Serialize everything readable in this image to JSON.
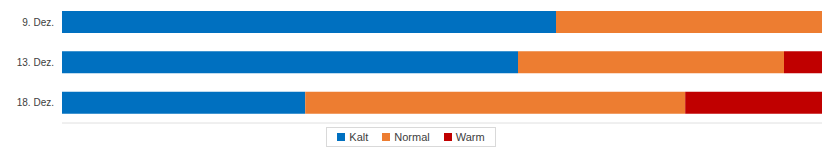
{
  "chart_data": {
    "type": "bar",
    "orientation": "horizontal",
    "stacked": true,
    "categories": [
      "9. Dez.",
      "13. Dez.",
      "18. Dez."
    ],
    "series": [
      {
        "name": "Kalt",
        "color": "#0070c0",
        "values": [
          65,
          60,
          32
        ]
      },
      {
        "name": "Normal",
        "color": "#ed7d31",
        "values": [
          35,
          35,
          50
        ]
      },
      {
        "name": "Warm",
        "color": "#c00000",
        "values": [
          0,
          5,
          18
        ]
      }
    ],
    "xlim": [
      0,
      100
    ],
    "tick_labels": "y",
    "legend": "bottom",
    "grid": false
  }
}
